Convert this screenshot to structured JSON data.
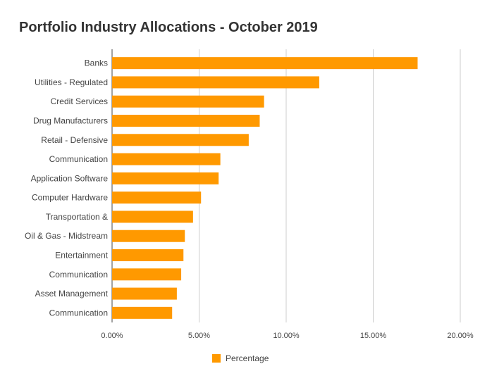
{
  "chart_data": {
    "type": "bar",
    "orientation": "horizontal",
    "title": "Portfolio Industry Allocations - October 2019",
    "xlabel": "",
    "ylabel": "",
    "xlim": [
      0,
      0.2
    ],
    "xticks": [
      "0.00%",
      "5.00%",
      "10.00%",
      "15.00%",
      "20.00%"
    ],
    "grid": true,
    "legend_position": "bottom",
    "categories": [
      "Banks",
      "Utilities - Regulated",
      "Credit Services",
      "Drug Manufacturers",
      "Retail - Defensive",
      "Communication",
      "Application Software",
      "Computer Hardware",
      "Transportation &",
      "Oil & Gas - Midstream",
      "Entertainment",
      "Communication",
      "Asset Management",
      "Communication"
    ],
    "series": [
      {
        "name": "Percentage",
        "color": "#ff9900",
        "values": [
          0.1755,
          0.119,
          0.0873,
          0.0848,
          0.0785,
          0.0622,
          0.0612,
          0.0511,
          0.0465,
          0.0418,
          0.041,
          0.0397,
          0.0372,
          0.0345
        ]
      }
    ]
  }
}
